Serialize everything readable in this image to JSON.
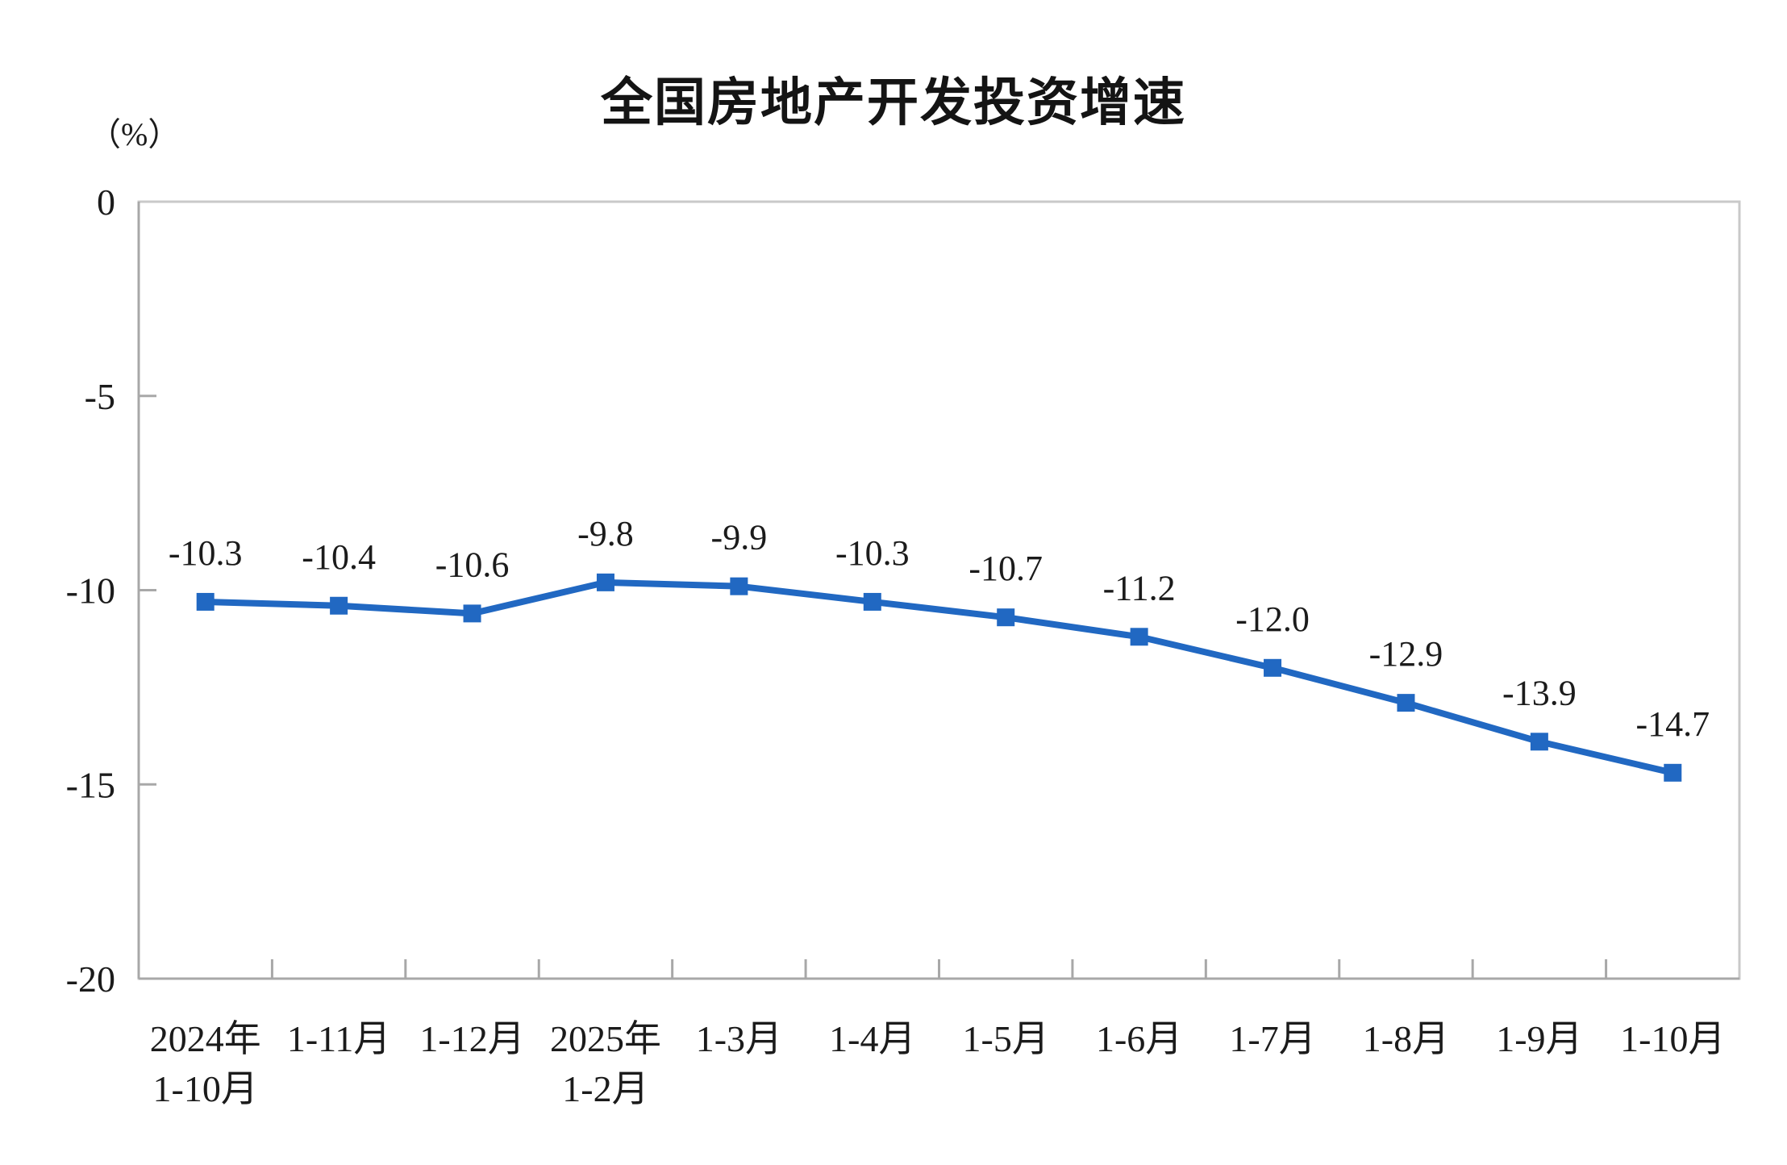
{
  "chart_data": {
    "type": "line",
    "title": "全国房地产开发投资增速",
    "unit_label": "（%）",
    "categories": [
      [
        "2024年",
        "1-10月"
      ],
      [
        "1-11月"
      ],
      [
        "1-12月"
      ],
      [
        "2025年",
        "1-2月"
      ],
      [
        "1-3月"
      ],
      [
        "1-4月"
      ],
      [
        "1-5月"
      ],
      [
        "1-6月"
      ],
      [
        "1-7月"
      ],
      [
        "1-8月"
      ],
      [
        "1-9月"
      ],
      [
        "1-10月"
      ]
    ],
    "values": [
      -10.3,
      -10.4,
      -10.6,
      -9.8,
      -9.9,
      -10.3,
      -10.7,
      -11.2,
      -12.0,
      -12.9,
      -13.9,
      -14.7
    ],
    "data_labels": [
      "-10.3",
      "-10.4",
      "-10.6",
      "-9.8",
      "-9.9",
      "-10.3",
      "-10.7",
      "-11.2",
      "-12.0",
      "-12.9",
      "-13.9",
      "-14.7"
    ],
    "ylim": [
      -20,
      0
    ],
    "yticks": [
      0,
      -5,
      -10,
      -15,
      -20
    ],
    "ytick_labels": [
      "0",
      "-5",
      "-10",
      "-15",
      "-20"
    ],
    "grid": false,
    "legend_position": "none",
    "series_name": "全国房地产开发投资增速",
    "marker": "square",
    "line_color": "#2168c2",
    "marker_color": "#2168c2",
    "text_color": "#1b1b1b",
    "axis_color": "#a8a8a8",
    "frame_color": "#c9c9c9",
    "background_color": "#ffffff"
  }
}
